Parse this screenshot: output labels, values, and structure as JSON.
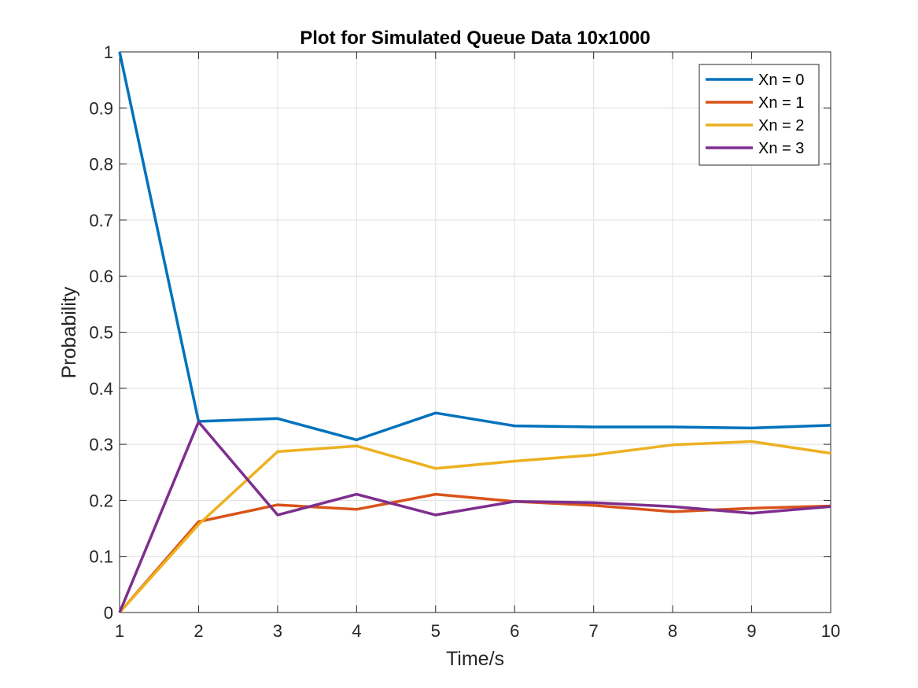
{
  "chart_data": {
    "type": "line",
    "title": "Plot for Simulated Queue Data 10x1000",
    "xlabel": "Time/s",
    "ylabel": "Probability",
    "xlim": [
      1,
      10
    ],
    "ylim": [
      0,
      1
    ],
    "x": [
      1,
      2,
      3,
      4,
      5,
      6,
      7,
      8,
      9,
      10
    ],
    "x_ticks": [
      "1",
      "2",
      "3",
      "4",
      "5",
      "6",
      "7",
      "8",
      "9",
      "10"
    ],
    "y_ticks": [
      "0",
      "0.1",
      "0.2",
      "0.3",
      "0.4",
      "0.5",
      "0.6",
      "0.7",
      "0.8",
      "0.9",
      "1"
    ],
    "grid": true,
    "legend_position": "top-right",
    "series": [
      {
        "name": "Xn = 0",
        "color": "#0072BD",
        "values": [
          1.0,
          0.341,
          0.346,
          0.308,
          0.356,
          0.333,
          0.331,
          0.331,
          0.329,
          0.334
        ]
      },
      {
        "name": "Xn = 1",
        "color": "#D95319",
        "values": [
          0.0,
          0.162,
          0.192,
          0.184,
          0.211,
          0.198,
          0.191,
          0.18,
          0.186,
          0.19
        ]
      },
      {
        "name": "Xn = 2",
        "color": "#EDB120",
        "values": [
          0.0,
          0.157,
          0.287,
          0.297,
          0.257,
          0.27,
          0.281,
          0.299,
          0.305,
          0.284
        ]
      },
      {
        "name": "Xn = 3",
        "color": "#7E2F8E",
        "values": [
          0.0,
          0.34,
          0.174,
          0.211,
          0.174,
          0.198,
          0.196,
          0.189,
          0.177,
          0.189
        ]
      }
    ]
  }
}
